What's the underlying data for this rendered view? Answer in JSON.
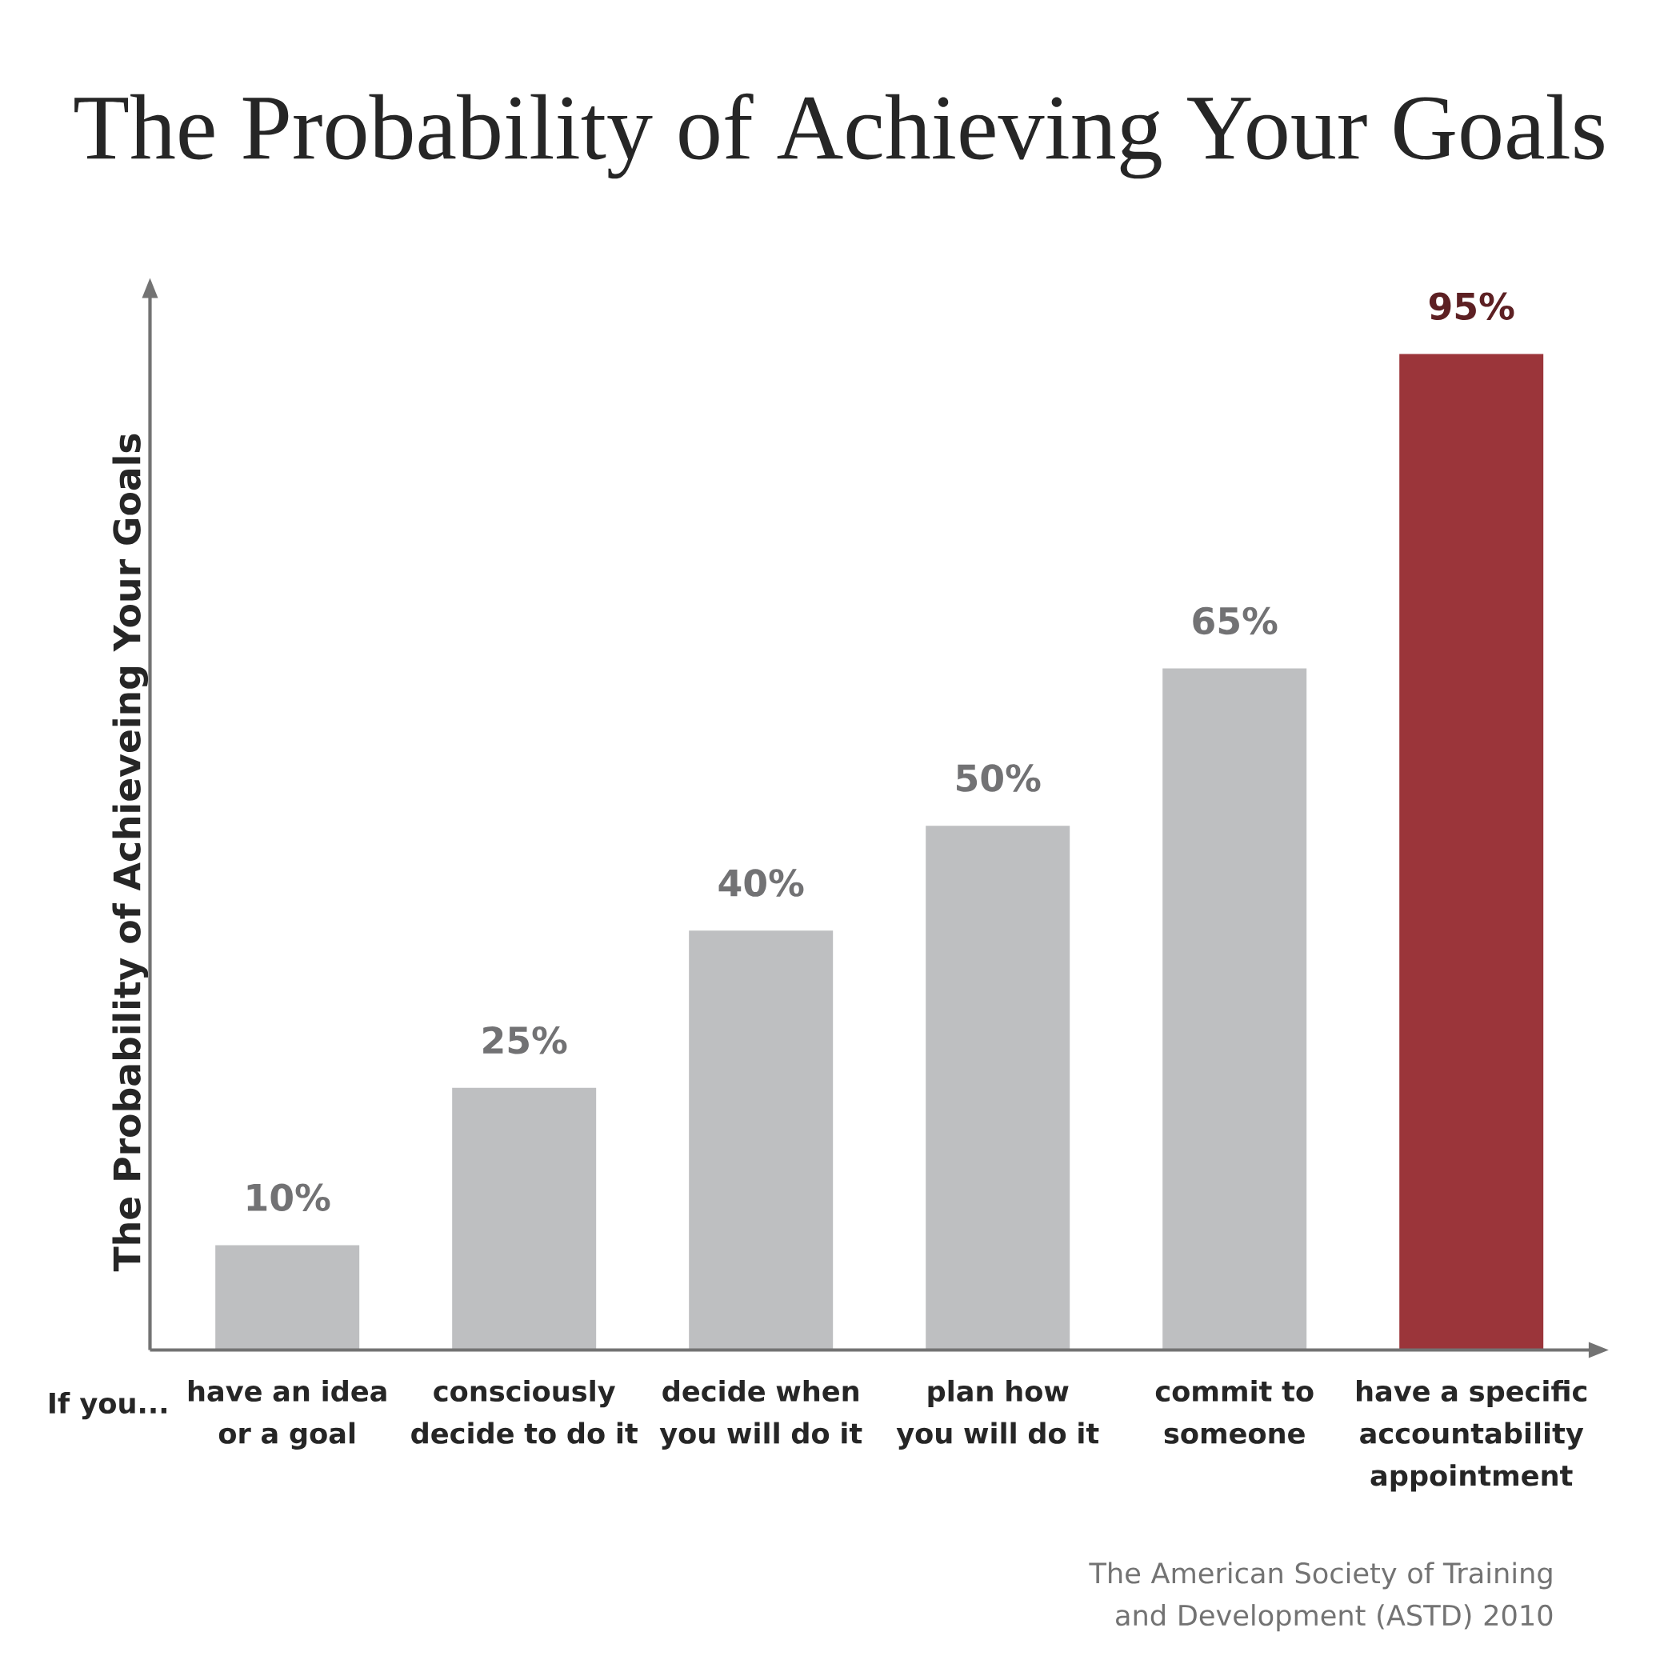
{
  "chart_data": {
    "type": "bar",
    "title": "The Probability of Achieving Your Goals",
    "ylabel": "The Probability of Achieveing Your Goals",
    "categories": [
      "have an idea or a goal",
      "consciously decide to do it",
      "decide when you will do it",
      "plan how you will do it",
      "commit to someone",
      "have a specific accountability appointment"
    ],
    "values": [
      10,
      25,
      40,
      50,
      65,
      95
    ],
    "value_labels": [
      "10%",
      "25%",
      "40%",
      "50%",
      "65%",
      "95%"
    ],
    "colors": [
      "#bebfc1",
      "#bebfc1",
      "#bebfc1",
      "#bebfc1",
      "#bebfc1",
      "#9b353a"
    ],
    "annotations": [
      "If you...",
      "The American Society of Training and Development (ASTD) 2010"
    ]
  }
}
